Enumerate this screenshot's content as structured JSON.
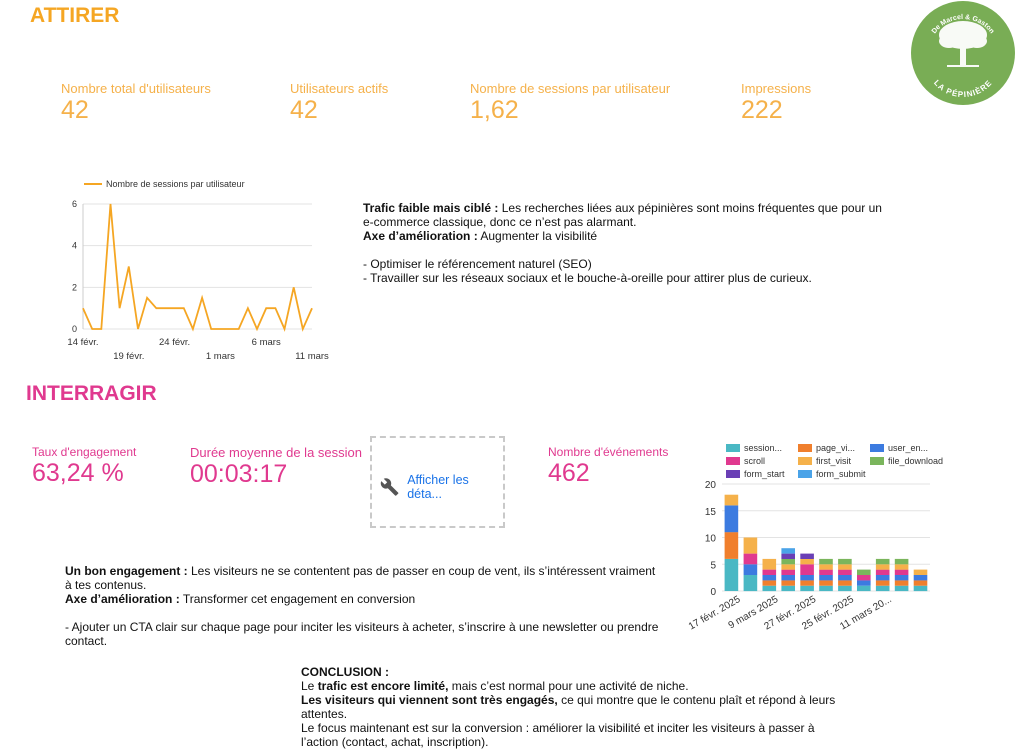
{
  "attirer": {
    "title": "ATTIRER",
    "kpis": [
      {
        "label": "Nombre total d'utilisateurs",
        "value": "42"
      },
      {
        "label": "Utilisateurs actifs",
        "value": "42"
      },
      {
        "label": "Nombre de sessions par utilisateur",
        "value": "1,62"
      },
      {
        "label": "Impressions",
        "value": "222"
      }
    ],
    "text": {
      "p1_bold": "Trafic faible mais ciblé :",
      "p1_rest": " Les recherches liées aux pépinières sont moins fréquentes que pour un e-commerce classique, donc ce n’est pas alarmant.",
      "p2_bold": "Axe d’amélioration :",
      "p2_rest": " Augmenter la visibilité",
      "b1": "- Optimiser le référencement naturel (SEO)",
      "b2": "- Travailler sur les réseaux sociaux et le bouche-à-oreille pour attirer plus de curieux."
    }
  },
  "logo": {
    "top_text": "De Marcel & Gaston",
    "bottom_text": "LA PÉPINIÈRE",
    "color": "#79ad55"
  },
  "interragir": {
    "title": "INTERRAGIR",
    "kpis": [
      {
        "label": "Taux d'engagement",
        "value": "63,24 %"
      },
      {
        "label": "Durée moyenne de la session",
        "value": "00:03:17"
      },
      {
        "label": "Nombre d'événements",
        "value": "462"
      }
    ],
    "details_link": "Afficher les déta...",
    "text": {
      "p1_bold": "Un bon engagement :",
      "p1_rest": " Les visiteurs ne se contentent pas de passer en coup de vent, ils s’intéressent vraiment à tes contenus.",
      "p2_bold": "Axe d’amélioration :",
      "p2_rest": " Transformer cet engagement en conversion",
      "b1": "- Ajouter un CTA clair sur chaque page pour inciter les visiteurs à acheter, s’inscrire à une newsletter ou prendre contact."
    }
  },
  "conclusion": {
    "title": "CONCLUSION :",
    "l1_pre": "Le ",
    "l1_bold": "trafic est encore limité,",
    "l1_rest": " mais c’est normal pour une activité de niche.",
    "l2_bold": "Les visiteurs qui viennent sont très engagés,",
    "l2_rest": " ce qui montre que le contenu plaît et répond à leurs attentes.",
    "l3": "Le focus maintenant est sur la conversion : améliorer la visibilité et inciter les visiteurs à passer à l’action (contact, achat, inscription)."
  },
  "chart_data": [
    {
      "type": "line",
      "legend": [
        "Nombre de sessions par utilisateur"
      ],
      "color": "#f5a623",
      "x_ticks_row1": [
        "14 févr.",
        "24 févr.",
        "6 mars"
      ],
      "x_ticks_row2": [
        "19 févr.",
        "1 mars",
        "11 mars"
      ],
      "y_ticks": [
        "0",
        "2",
        "4",
        "6"
      ],
      "ylim": [
        0,
        6
      ],
      "grid": true,
      "values": [
        1,
        0,
        0,
        6,
        1,
        3,
        0,
        1.5,
        1,
        1,
        1,
        1,
        0,
        1.5,
        0,
        0,
        0,
        0,
        1,
        0,
        1,
        1,
        0,
        2,
        0,
        1
      ]
    },
    {
      "type": "bar",
      "stacked": true,
      "legend": [
        {
          "name": "session...",
          "color": "#4ab8c4"
        },
        {
          "name": "page_vi...",
          "color": "#f07f2d"
        },
        {
          "name": "user_en...",
          "color": "#3c7be0"
        },
        {
          "name": "scroll",
          "color": "#e0398f"
        },
        {
          "name": "first_visit",
          "color": "#f5b14a"
        },
        {
          "name": "file_download",
          "color": "#7ab55c"
        },
        {
          "name": "form_start",
          "color": "#6a3fb5"
        },
        {
          "name": "form_submit",
          "color": "#4aa3e8"
        }
      ],
      "x_tick_labels": [
        "17 févr. 2025",
        "9 mars 2025",
        "27 févr. 2025",
        "25 févr. 2025",
        "11 mars 20..."
      ],
      "y_ticks": [
        "0",
        "5",
        "10",
        "15",
        "20"
      ],
      "ylim": [
        0,
        20
      ],
      "grid": true,
      "stacks": [
        [
          6,
          5,
          5,
          0,
          2,
          0,
          0,
          0
        ],
        [
          3,
          0,
          2,
          2,
          3,
          0,
          0,
          0
        ],
        [
          1,
          1,
          1,
          1,
          2,
          0,
          0,
          0
        ],
        [
          1,
          1,
          1,
          1,
          1,
          1,
          1,
          1
        ],
        [
          1,
          1,
          1,
          2,
          1,
          0,
          1,
          0
        ],
        [
          1,
          1,
          1,
          1,
          1,
          1,
          0,
          0
        ],
        [
          1,
          1,
          1,
          1,
          1,
          1,
          0,
          0
        ],
        [
          1,
          0,
          1,
          1,
          0,
          1,
          0,
          0
        ],
        [
          1,
          1,
          1,
          1,
          1,
          1,
          0,
          0
        ],
        [
          1,
          1,
          1,
          1,
          1,
          1,
          0,
          0
        ],
        [
          1,
          1,
          1,
          0,
          1,
          0,
          0,
          0
        ]
      ]
    }
  ]
}
